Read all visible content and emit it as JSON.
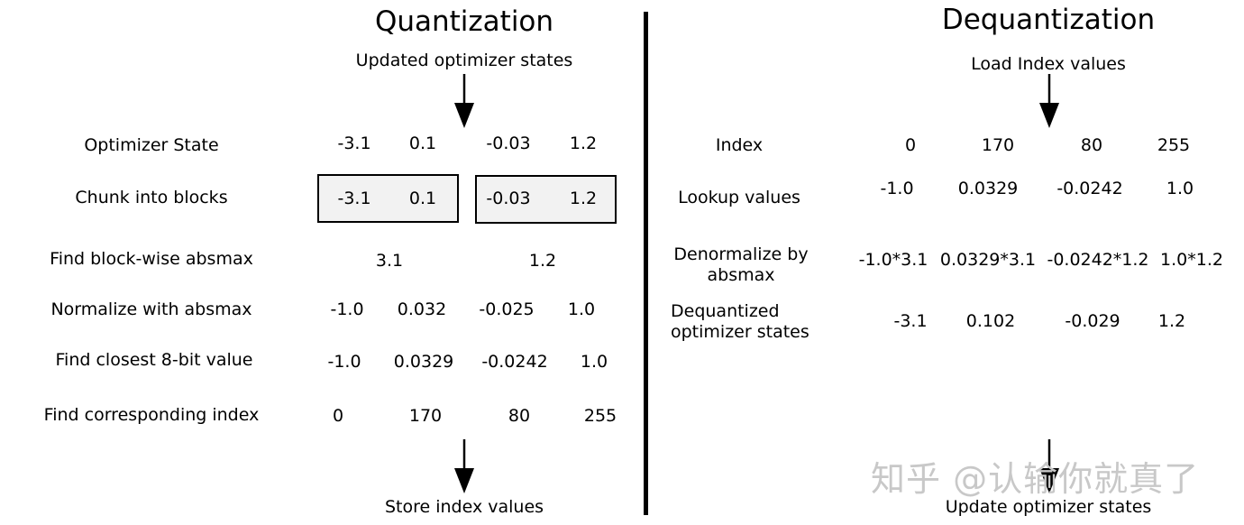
{
  "quantization": {
    "title": "Quantization",
    "input_caption": "Updated optimizer states",
    "output_caption": "Store index values",
    "rows": {
      "optimizer_state": {
        "label": "Optimizer State",
        "values": [
          "-3.1",
          "0.1",
          "-0.03",
          "1.2"
        ]
      },
      "chunk": {
        "label": "Chunk into blocks",
        "values": [
          "-3.1",
          "0.1",
          "-0.03",
          "1.2"
        ]
      },
      "absmax": {
        "label": "Find block-wise absmax",
        "values": [
          "3.1",
          "1.2"
        ]
      },
      "normalize": {
        "label": "Normalize with absmax",
        "values": [
          "-1.0",
          "0.032",
          "-0.025",
          "1.0"
        ]
      },
      "closest": {
        "label": "Find closest 8-bit value",
        "values": [
          "-1.0",
          "0.0329",
          "-0.0242",
          "1.0"
        ]
      },
      "index": {
        "label": "Find corresponding index",
        "values": [
          "0",
          "170",
          "80",
          "255"
        ]
      }
    }
  },
  "dequantization": {
    "title": "Dequantization",
    "input_caption": "Load Index values",
    "output_caption": "Update optimizer states",
    "rows": {
      "index": {
        "label": "Index",
        "values": [
          "0",
          "170",
          "80",
          "255"
        ]
      },
      "lookup": {
        "label": "Lookup values",
        "values": [
          "-1.0",
          "0.0329",
          "-0.0242",
          "1.0"
        ]
      },
      "denormalize": {
        "label_line1": "Denormalize by",
        "label_line2": "absmax",
        "values": [
          "-1.0*3.1",
          "0.0329*3.1",
          "-0.0242*1.2",
          "1.0*1.2"
        ]
      },
      "dequantized": {
        "label_line1": "Dequantized",
        "label_line2": "optimizer states",
        "values": [
          "-3.1",
          "0.102",
          "-0.029",
          "1.2"
        ]
      }
    }
  },
  "watermark": "知乎 @认输你就真了"
}
